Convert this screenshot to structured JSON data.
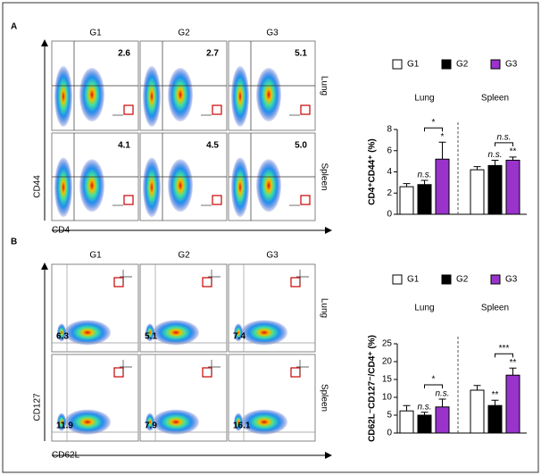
{
  "flow": [
    {
      "letter": "A",
      "columns": [
        "G1",
        "G2",
        "G3"
      ],
      "rows": [
        "Lung",
        "Spleen"
      ],
      "y_label": "CD44",
      "x_label": "CD4",
      "values": [
        [
          "2.6",
          "2.7",
          "5.1"
        ],
        [
          "4.1",
          "4.5",
          "5.0"
        ]
      ]
    },
    {
      "letter": "B",
      "columns": [
        "G1",
        "G2",
        "G3"
      ],
      "rows": [
        "Lung",
        "Spleen"
      ],
      "y_label": "CD127",
      "x_label": "CD62L",
      "values": [
        [
          "6.3",
          "5.1",
          "7.4"
        ],
        [
          "11.9",
          "7.9",
          "16.1"
        ]
      ]
    }
  ],
  "chart_data": [
    {
      "type": "bar",
      "y_label": "CD4⁺CD44⁺ (%)",
      "categories": [
        "Lung",
        "Spleen"
      ],
      "ylim": [
        0,
        8
      ],
      "yticks": [
        0,
        2,
        4,
        6,
        8
      ],
      "series": [
        {
          "name": "G1",
          "color": "#ffffff",
          "values": [
            2.6,
            4.2
          ],
          "errors": [
            0.3,
            0.3
          ]
        },
        {
          "name": "G2",
          "color": "#000000",
          "values": [
            2.8,
            4.6
          ],
          "errors": [
            0.4,
            0.5
          ],
          "annotations": [
            "n.s.",
            "n.s."
          ]
        },
        {
          "name": "G3",
          "color": "#9933cc",
          "values": [
            5.2,
            5.1
          ],
          "errors": [
            1.6,
            0.3
          ],
          "annotations": [
            "*",
            "**"
          ]
        }
      ],
      "brackets": [
        "*",
        "n.s."
      ]
    },
    {
      "type": "bar",
      "y_label": "CD62L⁻CD127⁻/CD4⁺ (%)",
      "categories": [
        "Lung",
        "Spleen"
      ],
      "ylim": [
        0,
        25
      ],
      "yticks": [
        0,
        5,
        10,
        15,
        20,
        25
      ],
      "series": [
        {
          "name": "G1",
          "color": "#ffffff",
          "values": [
            6.2,
            12.0
          ],
          "errors": [
            1.5,
            1.3
          ]
        },
        {
          "name": "G2",
          "color": "#000000",
          "values": [
            5.0,
            7.7
          ],
          "errors": [
            0.8,
            1.5
          ],
          "annotations": [
            "n.s.",
            "**"
          ]
        },
        {
          "name": "G3",
          "color": "#9933cc",
          "values": [
            7.3,
            16.2
          ],
          "errors": [
            2.2,
            2.0
          ],
          "annotations": [
            "n.s.",
            "**"
          ]
        }
      ],
      "brackets": [
        "*",
        "***"
      ]
    }
  ]
}
